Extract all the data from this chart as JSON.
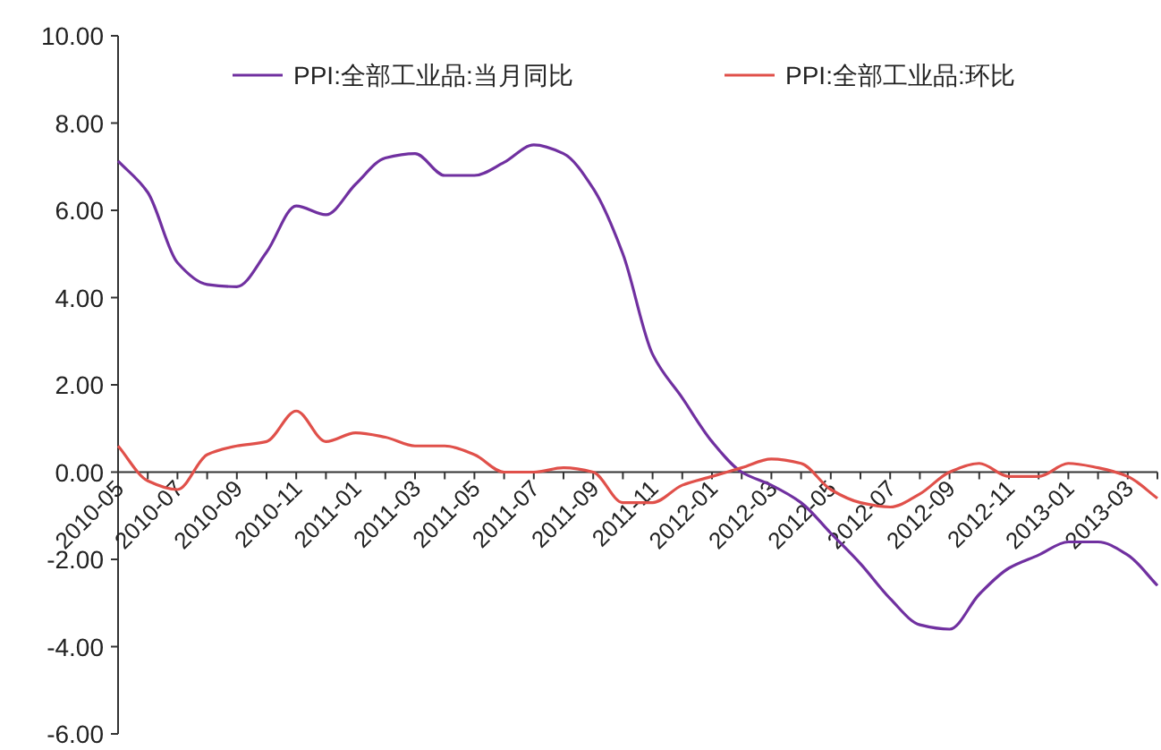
{
  "chart_data": {
    "type": "line",
    "categories": [
      "2010-05",
      null,
      "2010-07",
      null,
      "2010-09",
      null,
      "2010-11",
      null,
      "2011-01",
      null,
      "2011-03",
      null,
      "2011-05",
      null,
      "2011-07",
      null,
      "2011-09",
      null,
      "2011-11",
      null,
      "2012-01",
      null,
      "2012-03",
      null,
      "2012-05",
      null,
      "2012-07",
      null,
      "2012-09",
      null,
      "2012-11",
      null,
      "2013-01",
      null,
      "2013-03",
      null
    ],
    "series": [
      {
        "name": "PPI:全部工业品:当月同比",
        "color": "#7030a0",
        "values": [
          7.13,
          6.41,
          4.8,
          4.3,
          4.25,
          5.04,
          6.1,
          5.9,
          6.6,
          7.2,
          7.3,
          6.8,
          6.8,
          7.1,
          7.5,
          7.3,
          6.5,
          5.0,
          2.7,
          1.7,
          0.7,
          0.0,
          -0.3,
          -0.7,
          -1.4,
          -2.1,
          -2.9,
          -3.5,
          -3.6,
          -2.8,
          -2.2,
          -1.9,
          -1.6,
          -1.6,
          -1.9,
          -2.6
        ]
      },
      {
        "name": "PPI:全部工业品:环比",
        "color": "#e0504a",
        "values": [
          0.6,
          -0.2,
          -0.4,
          0.4,
          0.6,
          0.7,
          1.4,
          0.7,
          0.9,
          0.8,
          0.6,
          0.6,
          0.4,
          0.0,
          0.0,
          0.1,
          0.0,
          -0.7,
          -0.7,
          -0.3,
          -0.1,
          0.1,
          0.3,
          0.2,
          -0.4,
          -0.7,
          -0.8,
          -0.5,
          0.0,
          0.2,
          -0.1,
          -0.1,
          0.2,
          0.1,
          -0.1,
          -0.6
        ]
      }
    ],
    "ylim": [
      -6,
      10
    ],
    "yticks": [
      {
        "value": -6,
        "label": "-6.00"
      },
      {
        "value": -4,
        "label": "-4.00"
      },
      {
        "value": -2,
        "label": "-2.00"
      },
      {
        "value": 0,
        "label": "0.00"
      },
      {
        "value": 2,
        "label": "2.00"
      },
      {
        "value": 4,
        "label": "4.00"
      },
      {
        "value": 6,
        "label": "6.00"
      },
      {
        "value": 8,
        "label": "8.00"
      },
      {
        "value": 10,
        "label": "10.00"
      }
    ],
    "legend": "top"
  }
}
